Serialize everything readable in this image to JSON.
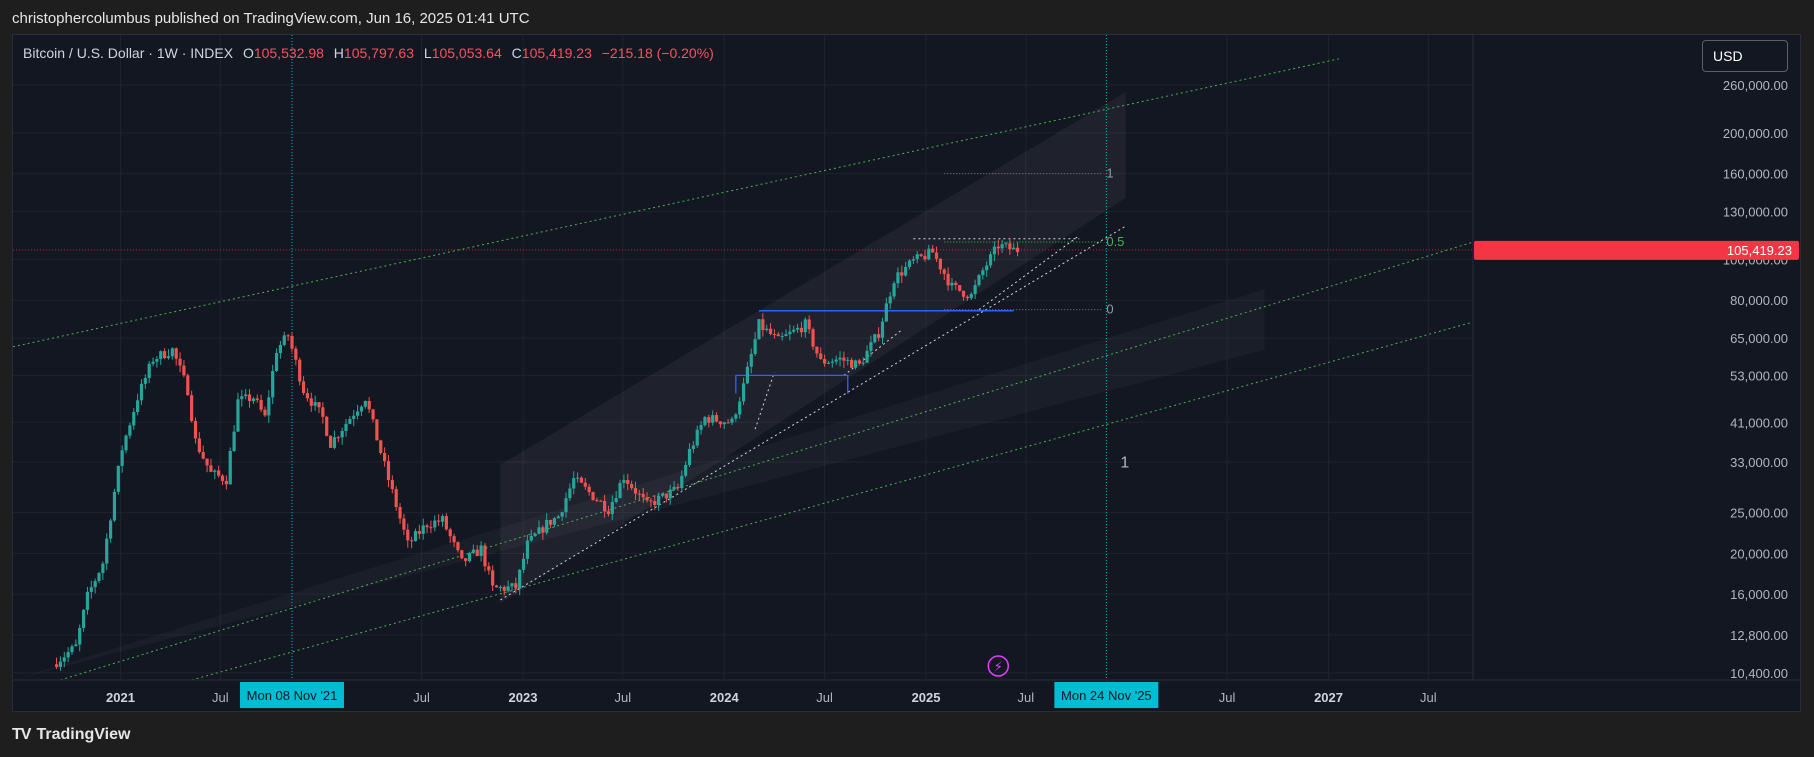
{
  "header": {
    "publish_text": "christophercolumbus published on TradingView.com, Jun 16, 2025 01:41 UTC"
  },
  "legend": {
    "symbol": "Bitcoin / U.S. Dollar · 1W · INDEX",
    "open_label": "O",
    "open": "105,532.98",
    "high_label": "H",
    "high": "105,797.63",
    "low_label": "L",
    "low": "105,053.64",
    "close_label": "C",
    "close": "105,419.23",
    "change": "−215.18 (−0.20%)"
  },
  "currency_button": {
    "label": "USD"
  },
  "footer": {
    "logo_mark": "TV",
    "logo_text": "TradingView"
  },
  "colors": {
    "background": "#131722",
    "up": "#26a69a",
    "down": "#ef5350",
    "price_tag": "#f23645",
    "cursor_tag": "#00bcd4",
    "channel": "#4caf50",
    "box": "#2962ff",
    "fib_half": "#4caf50"
  },
  "chart_data": {
    "type": "candlestick",
    "symbol": "Bitcoin / U.S. Dollar",
    "interval": "1W",
    "y_scale": "log",
    "y_ticks": [
      "10,400.00",
      "12,800.00",
      "16,000.00",
      "20,000.00",
      "25,000.00",
      "33,000.00",
      "41,000.00",
      "53,000.00",
      "65,000.00",
      "80,000.00",
      "100,000.00",
      "130,000.00",
      "160,000.00",
      "200,000.00",
      "260,000.00"
    ],
    "y_tick_values": [
      10400,
      12800,
      16000,
      20000,
      25000,
      33000,
      41000,
      53000,
      65000,
      80000,
      100000,
      130000,
      160000,
      200000,
      260000
    ],
    "x_ticks": [
      "2021",
      "Jul",
      "Jul",
      "2023",
      "Jul",
      "2024",
      "Jul",
      "2025",
      "Jul",
      "Jul",
      "2027",
      "Jul"
    ],
    "x_tick_dates": [
      "2021-01-01",
      "2021-07-01",
      "2022-07-01",
      "2023-01-01",
      "2023-07-01",
      "2024-01-01",
      "2024-07-01",
      "2025-01-01",
      "2025-07-01",
      "2026-07-01",
      "2027-01-01",
      "2027-07-01"
    ],
    "x_range": [
      "2020-06-20",
      "2027-09-20"
    ],
    "y_range": [
      10000,
      290000
    ],
    "current_price": {
      "label": "105,419.23",
      "value": 105419.23
    },
    "cursor_labels": [
      {
        "label": "Mon 08 Nov '21",
        "date": "2021-11-08"
      },
      {
        "label": "Mon 24 Nov '25",
        "date": "2025-11-24"
      }
    ],
    "fib_levels": [
      {
        "label": "1",
        "value": 160000
      },
      {
        "label": "0.5",
        "value": 110000
      },
      {
        "label": "0",
        "value": 76000
      }
    ],
    "annotations": [
      {
        "label": "1",
        "date": "2025-11-24",
        "value": 32000
      }
    ],
    "anchors": [
      [
        "2020-09-07",
        10900
      ],
      [
        "2020-10-19",
        12000
      ],
      [
        "2020-11-09",
        15800
      ],
      [
        "2020-12-07",
        19000
      ],
      [
        "2020-12-28",
        28000
      ],
      [
        "2021-01-11",
        35500
      ],
      [
        "2021-02-08",
        47000
      ],
      [
        "2021-03-08",
        58000
      ],
      [
        "2021-04-12",
        61000
      ],
      [
        "2021-05-10",
        49000
      ],
      [
        "2021-05-24",
        37000
      ],
      [
        "2021-06-21",
        31000
      ],
      [
        "2021-07-19",
        30000
      ],
      [
        "2021-08-09",
        46000
      ],
      [
        "2021-09-06",
        47000
      ],
      [
        "2021-09-27",
        42000
      ],
      [
        "2021-10-18",
        61000
      ],
      [
        "2021-11-08",
        66000
      ],
      [
        "2021-12-06",
        49000
      ],
      [
        "2022-01-10",
        42000
      ],
      [
        "2022-01-24",
        36500
      ],
      [
        "2022-03-28",
        47000
      ],
      [
        "2022-05-09",
        30000
      ],
      [
        "2022-06-13",
        21000
      ],
      [
        "2022-07-18",
        23500
      ],
      [
        "2022-08-15",
        24000
      ],
      [
        "2022-09-19",
        19000
      ],
      [
        "2022-10-24",
        20500
      ],
      [
        "2022-11-14",
        16500
      ],
      [
        "2022-12-26",
        16600
      ],
      [
        "2023-01-16",
        21000
      ],
      [
        "2023-02-20",
        23500
      ],
      [
        "2023-03-13",
        24500
      ],
      [
        "2023-04-10",
        30000
      ],
      [
        "2023-06-12",
        25500
      ],
      [
        "2023-07-10",
        30500
      ],
      [
        "2023-08-21",
        26000
      ],
      [
        "2023-10-16",
        28500
      ],
      [
        "2023-11-06",
        35000
      ],
      [
        "2023-12-04",
        42000
      ],
      [
        "2024-01-22",
        41000
      ],
      [
        "2024-02-12",
        50000
      ],
      [
        "2024-03-11",
        70000
      ],
      [
        "2024-04-15",
        64000
      ],
      [
        "2024-06-03",
        70000
      ],
      [
        "2024-07-01",
        57000
      ],
      [
        "2024-08-05",
        58000
      ],
      [
        "2024-09-09",
        56000
      ],
      [
        "2024-10-14",
        67000
      ],
      [
        "2024-11-11",
        90000
      ],
      [
        "2024-12-16",
        99000
      ],
      [
        "2025-01-20",
        104000
      ],
      [
        "2025-02-24",
        86000
      ],
      [
        "2025-03-31",
        82000
      ],
      [
        "2025-04-21",
        94000
      ],
      [
        "2025-05-19",
        108000
      ],
      [
        "2025-06-16",
        105419
      ]
    ]
  }
}
